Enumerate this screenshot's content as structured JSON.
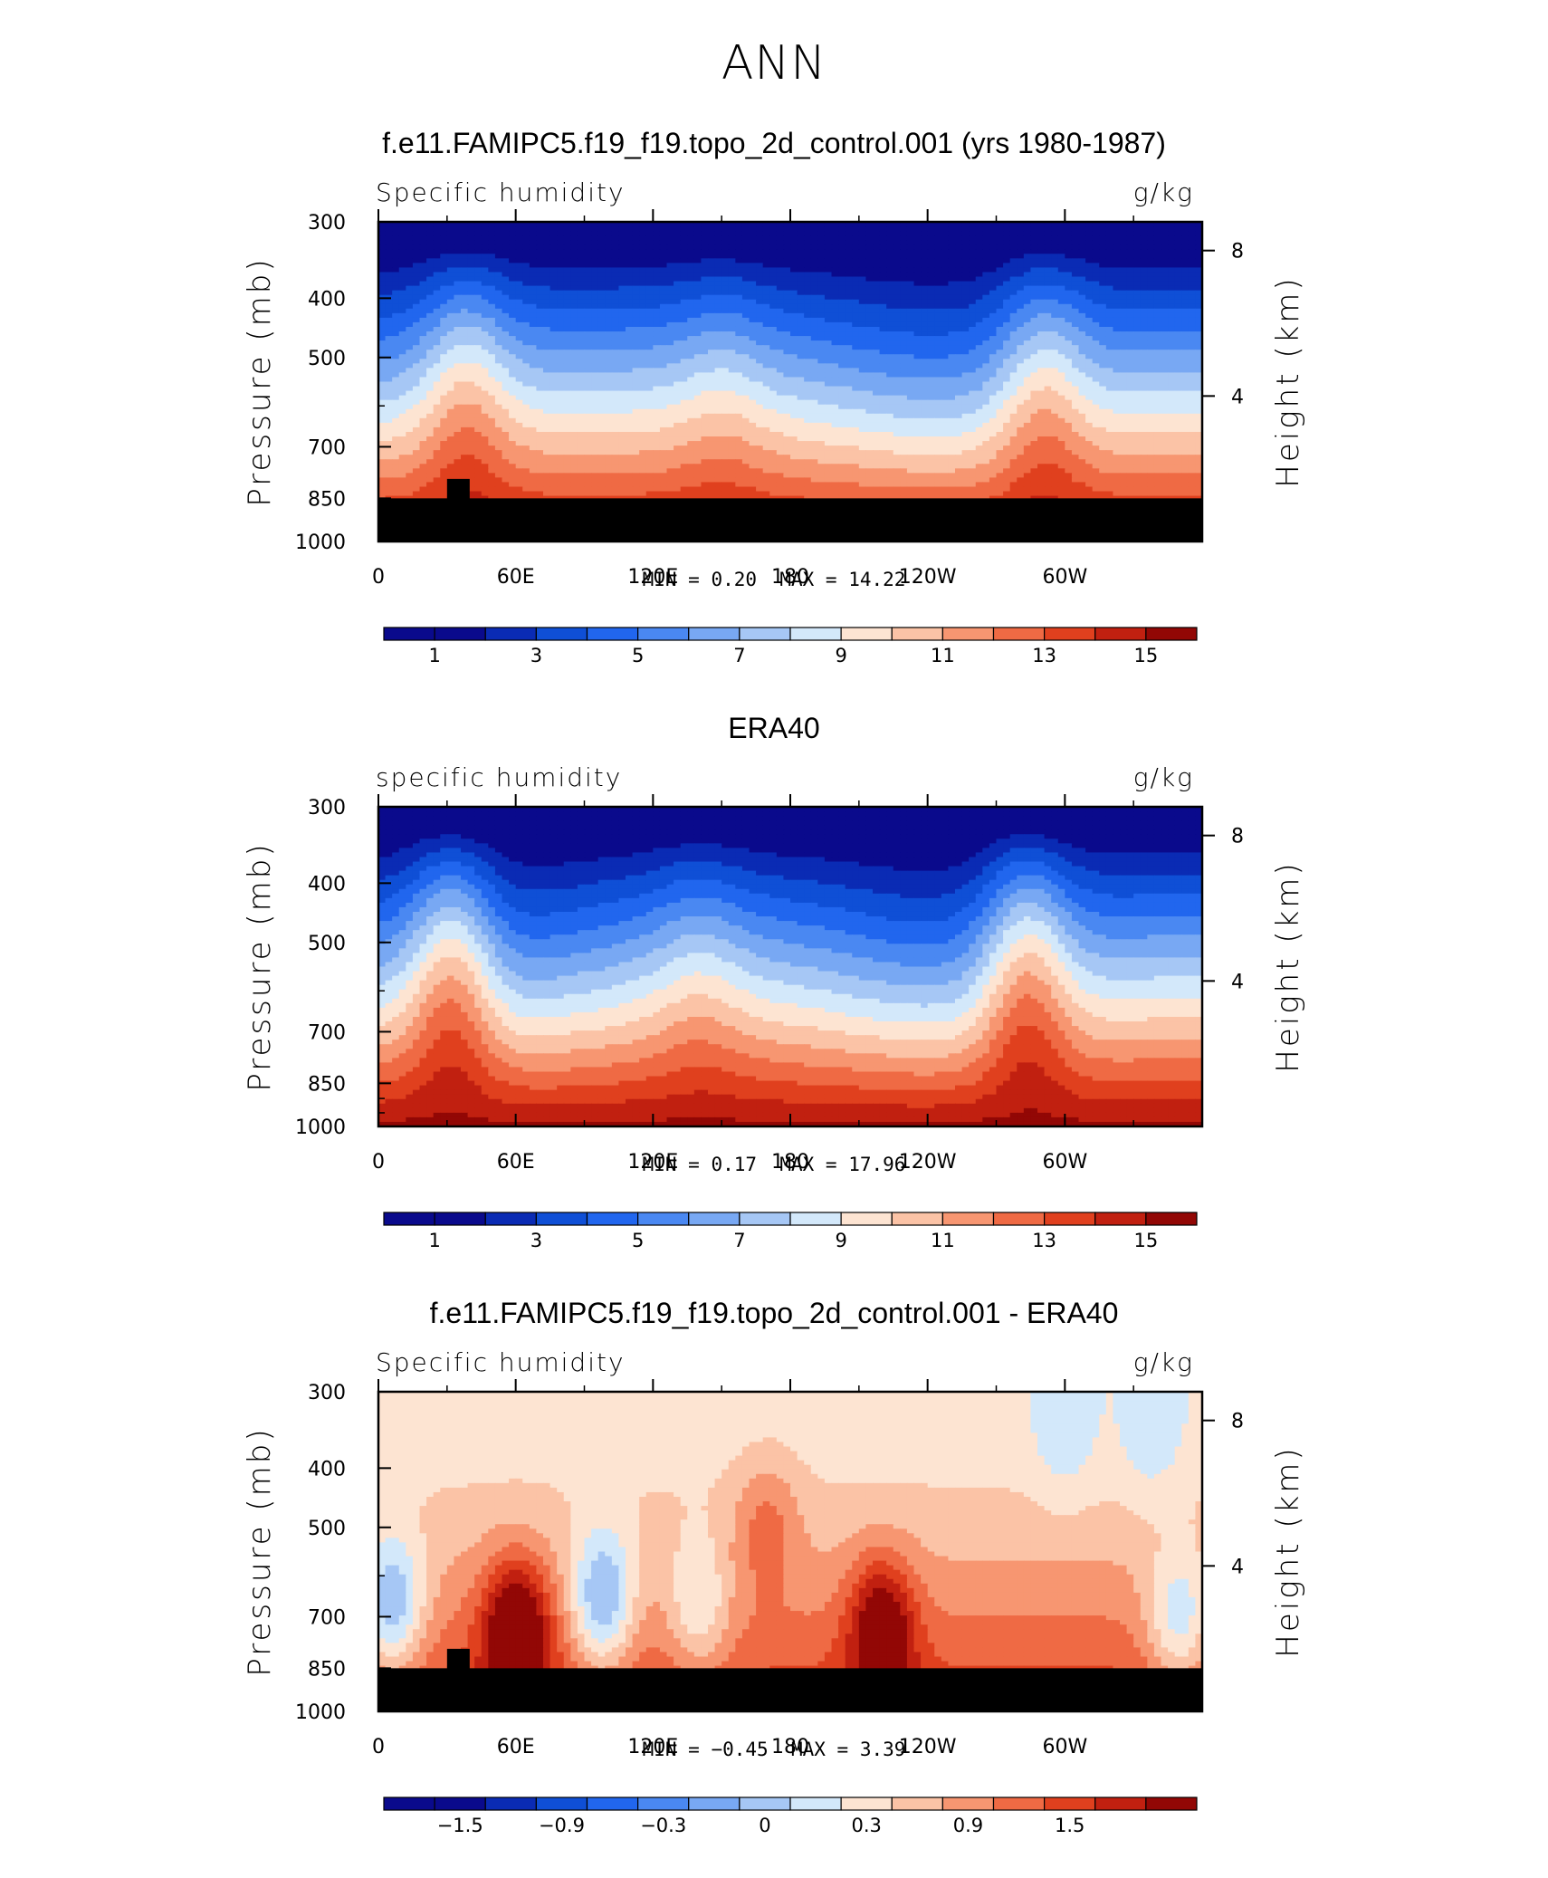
{
  "page_title": "ANN",
  "colors": {
    "scale": [
      "#0a0a8c",
      "#0a2bb4",
      "#0f4fd6",
      "#2166ee",
      "#4a88f2",
      "#78a8f3",
      "#a6c7f5",
      "#d3e8fa",
      "#fde4d2",
      "#fbc3a6",
      "#f79671",
      "#ef6a44",
      "#e0401e",
      "#c12010",
      "#920705"
    ],
    "topography": "#000000",
    "axis": "#000000"
  },
  "chart_data": [
    {
      "type": "heatmap",
      "title": "f.e11.FAMIPC5.f19_f19.topo_2d_control.001 (yrs 1980-1987)",
      "subtitle_left": "Specific humidity",
      "subtitle_right": "g/kg",
      "ylabel": "Pressure (mb)",
      "ylabel_right": "Height (km)",
      "yticks": [
        "300",
        "400",
        "500",
        "700",
        "850",
        "1000"
      ],
      "ylim": [
        1000,
        300
      ],
      "right_ticks": [
        "8",
        "4"
      ],
      "xticks": [
        "0",
        "60E",
        "120E",
        "180",
        "120W",
        "60W"
      ],
      "xlim": [
        0,
        360
      ],
      "min_label": "MIN =",
      "min_value": "0.20",
      "max_label": "MAX =",
      "max_value": "14.22",
      "colorbar_labels": [
        "1",
        "3",
        "5",
        "7",
        "9",
        "11",
        "13",
        "15"
      ],
      "masked_below_mb": 850,
      "profile_humps": [
        {
          "lon": 38,
          "amp": 0.9
        },
        {
          "lon": 150,
          "amp": 0.35
        },
        {
          "lon": 290,
          "amp": 0.9
        }
      ],
      "profile_dips": [
        {
          "lon": 0,
          "amp": 0.2
        },
        {
          "lon": 245,
          "amp": 0.45
        }
      ]
    },
    {
      "type": "heatmap",
      "title": "ERA40",
      "subtitle_left": "specific humidity",
      "subtitle_right": "g/kg",
      "ylabel": "Pressure (mb)",
      "ylabel_right": "Height (km)",
      "yticks": [
        "300",
        "400",
        "500",
        "700",
        "850",
        "1000"
      ],
      "ylim": [
        1000,
        300
      ],
      "right_ticks": [
        "8",
        "4"
      ],
      "xticks": [
        "0",
        "60E",
        "120E",
        "180",
        "120W",
        "60W"
      ],
      "xlim": [
        0,
        360
      ],
      "min_label": "MIN =",
      "min_value": "0.17",
      "max_label": "MAX =",
      "max_value": "17.96",
      "colorbar_labels": [
        "1",
        "3",
        "5",
        "7",
        "9",
        "11",
        "13",
        "15"
      ],
      "masked_below_mb": null,
      "profile_humps": [
        {
          "lon": 32,
          "amp": 1.4
        },
        {
          "lon": 140,
          "amp": 0.4
        },
        {
          "lon": 283,
          "amp": 1.3
        }
      ],
      "profile_dips": [
        {
          "lon": 45,
          "amp": 0.5
        },
        {
          "lon": 245,
          "amp": 0.5
        }
      ]
    },
    {
      "type": "heatmap",
      "title": "f.e11.FAMIPC5.f19_f19.topo_2d_control.001 - ERA40",
      "subtitle_left": "Specific humidity",
      "subtitle_right": "g/kg",
      "ylabel": "Pressure (mb)",
      "ylabel_right": "Height (km)",
      "yticks": [
        "300",
        "400",
        "500",
        "700",
        "850",
        "1000"
      ],
      "ylim": [
        1000,
        300
      ],
      "right_ticks": [
        "8",
        "4"
      ],
      "xticks": [
        "0",
        "60E",
        "120E",
        "180",
        "120W",
        "60W"
      ],
      "xlim": [
        0,
        360
      ],
      "min_label": "MIN =",
      "min_value": "−0.45",
      "max_label": "MAX =",
      "max_value": "3.39",
      "colorbar_labels": [
        "−1.5",
        "−0.9",
        "−0.3",
        "0",
        "0.3",
        "0.9",
        "1.5"
      ],
      "masked_below_mb": 850,
      "difference_blobs": [
        {
          "lon": 6,
          "mb": 650,
          "value": -0.35
        },
        {
          "lon": 98,
          "mb": 640,
          "value": -0.45
        },
        {
          "lon": 140,
          "mb": 640,
          "value": 0.15
        },
        {
          "lon": 350,
          "mb": 680,
          "value": 0.0
        },
        {
          "lon": 338,
          "mb": 330,
          "value": -0.1
        },
        {
          "lon": 300,
          "mb": 330,
          "value": -0.1
        },
        {
          "lon": 170,
          "mb": 520,
          "value": 1.2
        },
        {
          "lon": 220,
          "mb": 760,
          "value": 2.6
        },
        {
          "lon": 60,
          "mb": 760,
          "value": 2.8
        }
      ]
    }
  ]
}
